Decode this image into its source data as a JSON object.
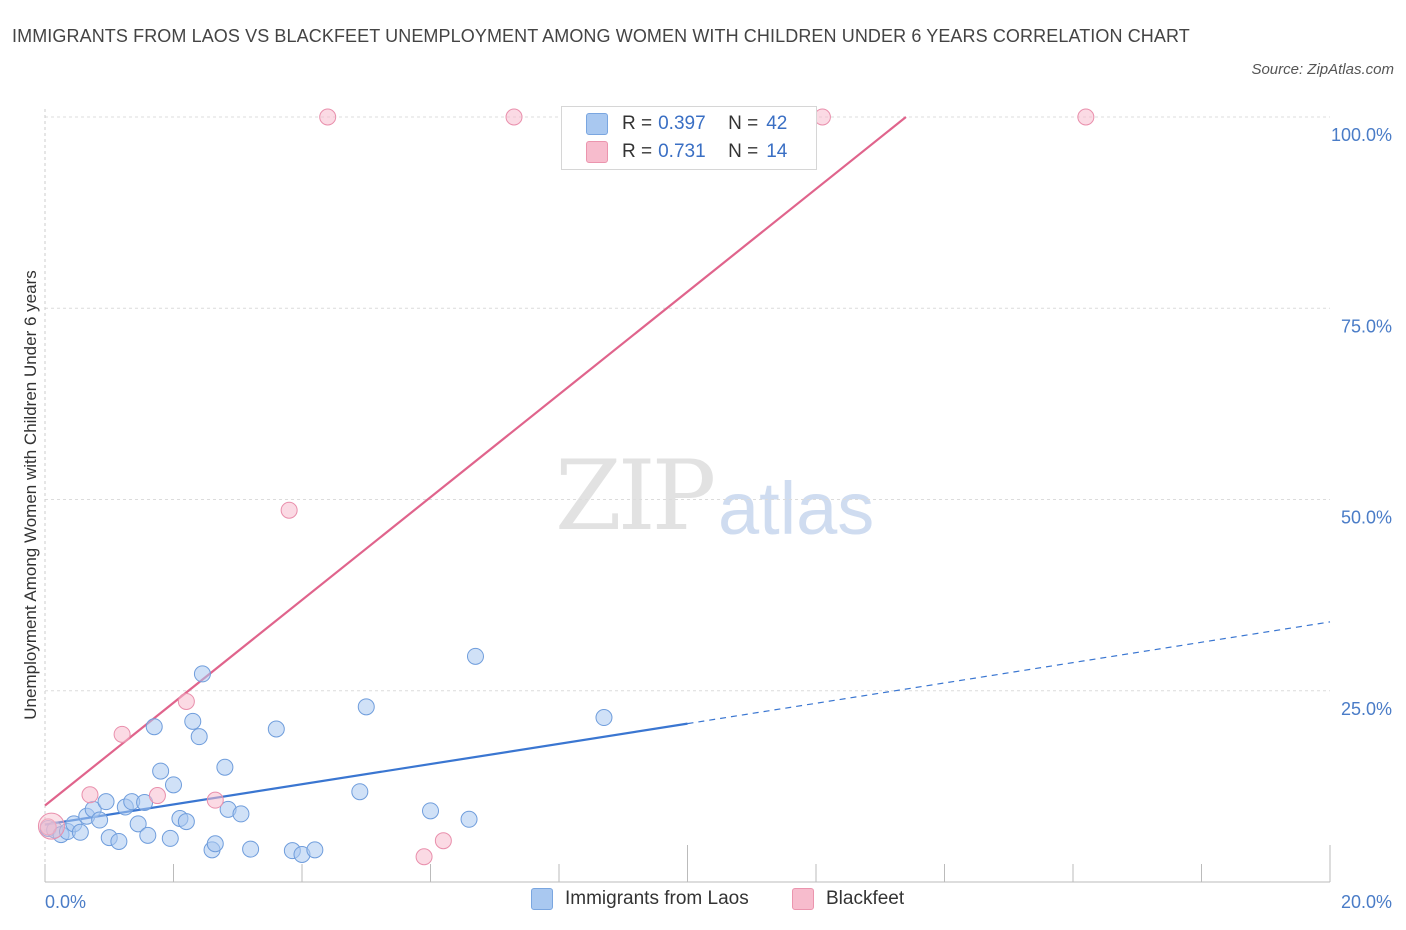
{
  "title": "IMMIGRANTS FROM LAOS VS BLACKFEET UNEMPLOYMENT AMONG WOMEN WITH CHILDREN UNDER 6 YEARS CORRELATION CHART",
  "source": "Source: ZipAtlas.com",
  "watermark": {
    "zip": "ZIP",
    "atlas": "atlas"
  },
  "legend": {
    "rows": [
      {
        "r_label": "R =",
        "r_value": "0.397",
        "n_label": "N =",
        "n_value": "42",
        "color": "#a9c8f0"
      },
      {
        "r_label": "R =",
        "r_value": "0.731",
        "n_label": "N =",
        "n_value": "14",
        "color": "#f7bccd"
      }
    ]
  },
  "bottom_legend": [
    "Immigrants from Laos",
    "Blackfeet"
  ],
  "colors": {
    "blue": "#3a76d1",
    "blue_fill": "#a9c8f0",
    "pink": "#e0648c",
    "pink_fill": "#f7bccd",
    "tick_text": "#4a7cc7"
  },
  "chart_data": {
    "type": "scatter",
    "title": "IMMIGRANTS FROM LAOS VS BLACKFEET UNEMPLOYMENT AMONG WOMEN WITH CHILDREN UNDER 6 YEARS CORRELATION CHART",
    "xlabel": "",
    "ylabel": "Unemployment Among Women with Children Under 6 years",
    "xlim": [
      0,
      20
    ],
    "ylim": [
      0,
      100
    ],
    "x_tick_labels": [
      "0.0%",
      "20.0%"
    ],
    "y_tick_labels": [
      "25.0%",
      "50.0%",
      "75.0%",
      "100.0%"
    ],
    "y_ticks": [
      25,
      50,
      75,
      100
    ],
    "grid": true,
    "series": [
      {
        "name": "Immigrants from Laos",
        "points": [
          [
            0.05,
            7.0
          ],
          [
            0.15,
            6.8
          ],
          [
            0.25,
            6.2
          ],
          [
            0.35,
            6.6
          ],
          [
            0.45,
            7.6
          ],
          [
            0.55,
            6.5
          ],
          [
            0.65,
            8.6
          ],
          [
            0.75,
            9.5
          ],
          [
            0.85,
            8.1
          ],
          [
            0.95,
            10.5
          ],
          [
            1.0,
            5.8
          ],
          [
            1.15,
            5.3
          ],
          [
            1.25,
            9.8
          ],
          [
            1.35,
            10.5
          ],
          [
            1.45,
            7.6
          ],
          [
            1.55,
            10.4
          ],
          [
            1.6,
            6.1
          ],
          [
            1.7,
            20.3
          ],
          [
            1.8,
            14.5
          ],
          [
            1.95,
            5.7
          ],
          [
            2.0,
            12.7
          ],
          [
            2.1,
            8.3
          ],
          [
            2.2,
            7.9
          ],
          [
            2.3,
            21.0
          ],
          [
            2.4,
            19.0
          ],
          [
            2.45,
            27.2
          ],
          [
            2.6,
            4.2
          ],
          [
            2.65,
            5.0
          ],
          [
            2.8,
            15.0
          ],
          [
            2.85,
            9.5
          ],
          [
            3.05,
            8.9
          ],
          [
            3.2,
            4.3
          ],
          [
            3.6,
            20.0
          ],
          [
            3.85,
            4.1
          ],
          [
            4.0,
            3.6
          ],
          [
            4.2,
            4.2
          ],
          [
            4.9,
            11.8
          ],
          [
            5.0,
            22.9
          ],
          [
            6.0,
            9.3
          ],
          [
            6.6,
            8.2
          ],
          [
            6.7,
            29.5
          ],
          [
            8.7,
            21.5
          ]
        ]
      },
      {
        "name": "Blackfeet",
        "points": [
          [
            0.05,
            7.2
          ],
          [
            0.7,
            11.4
          ],
          [
            1.2,
            19.3
          ],
          [
            1.75,
            11.3
          ],
          [
            2.2,
            23.6
          ],
          [
            2.65,
            10.7
          ],
          [
            3.8,
            48.6
          ],
          [
            4.4,
            100.0
          ],
          [
            5.9,
            3.3
          ],
          [
            6.2,
            5.4
          ],
          [
            7.3,
            100.0
          ],
          [
            9.8,
            100.0
          ],
          [
            12.1,
            100.0
          ],
          [
            16.2,
            100.0
          ]
        ]
      }
    ],
    "trend_lines": [
      {
        "series": "Immigrants from Laos",
        "from": [
          0,
          7.5
        ],
        "to": [
          10,
          20.7
        ],
        "dashed_to": [
          20,
          34.0
        ]
      },
      {
        "series": "Blackfeet",
        "from": [
          0,
          10.0
        ],
        "to": [
          13.4,
          100.0
        ]
      }
    ]
  }
}
